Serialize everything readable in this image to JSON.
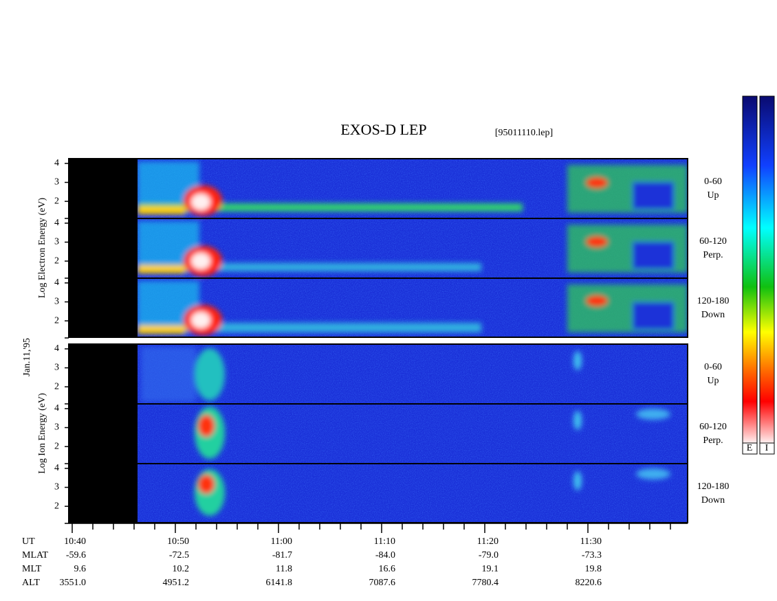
{
  "chart_data": {
    "type": "spectrogram",
    "title": "EXOS-D LEP",
    "file_label": "[95011110.lep]",
    "date_label": "Jan.11,'95",
    "groups": [
      {
        "axis_label": "Log Electron Energy (eV)",
        "panels": [
          {
            "angle": "0-60",
            "direction": "Up"
          },
          {
            "angle": "60-120",
            "direction": "Perp."
          },
          {
            "angle": "120-180",
            "direction": "Down"
          }
        ]
      },
      {
        "axis_label": "Log Ion Energy (eV)",
        "panels": [
          {
            "angle": "0-60",
            "direction": "Up"
          },
          {
            "angle": "60-120",
            "direction": "Perp."
          },
          {
            "angle": "120-180",
            "direction": "Down"
          }
        ]
      }
    ],
    "ylim": [
      1.1,
      4.25
    ],
    "yticks": [
      2,
      3,
      4
    ],
    "colorbar_labels": [
      "E",
      "I"
    ],
    "orbit": {
      "rows": [
        {
          "name": "UT",
          "values": [
            "10:40",
            "10:50",
            "11:00",
            "11:10",
            "11:20",
            "11:30"
          ]
        },
        {
          "name": "MLAT",
          "values": [
            "-59.6",
            "-72.5",
            "-81.7",
            "-84.0",
            "-79.0",
            "-73.3"
          ]
        },
        {
          "name": "MLT",
          "values": [
            "9.6",
            "10.2",
            "11.8",
            "16.6",
            "19.1",
            "19.8"
          ]
        },
        {
          "name": "ALT",
          "values": [
            "3551.0",
            "4951.2",
            "6141.8",
            "7087.6",
            "7780.4",
            "8220.6"
          ]
        }
      ]
    }
  }
}
